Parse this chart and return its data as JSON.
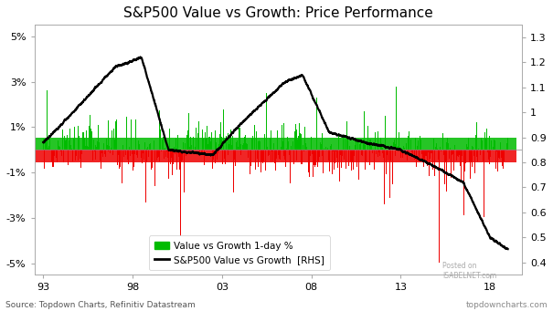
{
  "title": "S&P500 Value vs Growth: Price Performance",
  "xlabel_ticks": [
    "93",
    "98",
    "03",
    "08",
    "13",
    "18"
  ],
  "xlabel_tick_positions": [
    1993,
    1998,
    2003,
    2008,
    2013,
    2018
  ],
  "left_yticks": [
    5,
    3,
    1,
    -1,
    -3,
    -5
  ],
  "left_yticklabels": [
    "5%",
    "3%",
    "1%",
    "-1%",
    "-3%",
    "-5%"
  ],
  "right_yticks": [
    1.3,
    1.2,
    1.1,
    1.0,
    0.9,
    0.8,
    0.7,
    0.6,
    0.5,
    0.4
  ],
  "right_yticklabels": [
    "1.3",
    "1.2",
    "1.1",
    "1",
    "0.9",
    "0.8",
    "0.7",
    "0.6",
    "0.5",
    "0.4"
  ],
  "ylim_left": [
    -5.5,
    5.5
  ],
  "ylim_right": [
    0.35,
    1.35
  ],
  "bar_positive_color": "#00bb00",
  "bar_negative_color": "#ee0000",
  "line_color": "#000000",
  "line_width": 1.6,
  "background_color": "#ffffff",
  "source_text": "Source: Topdown Charts, Refinitiv Datastream",
  "watermark_text": "topdowncharts.com",
  "posted_on_text": "Posted on\nISABELNET.com",
  "legend_bar_label": "Value vs Growth 1-day %",
  "legend_line_label": "S&P500 Value vs Growth  [RHS]",
  "start_year": 1993,
  "end_year": 2019,
  "n_points": 6500,
  "waypoints_x": [
    1993,
    1994,
    1997,
    1998.5,
    2000,
    2002.5,
    2004,
    2006.5,
    2007.5,
    2009,
    2011,
    2013,
    2015,
    2016.5,
    2018,
    2019
  ],
  "waypoints_y": [
    0.88,
    0.95,
    1.18,
    1.22,
    0.85,
    0.83,
    0.95,
    1.12,
    1.15,
    0.92,
    0.88,
    0.85,
    0.78,
    0.72,
    0.5,
    0.45
  ]
}
